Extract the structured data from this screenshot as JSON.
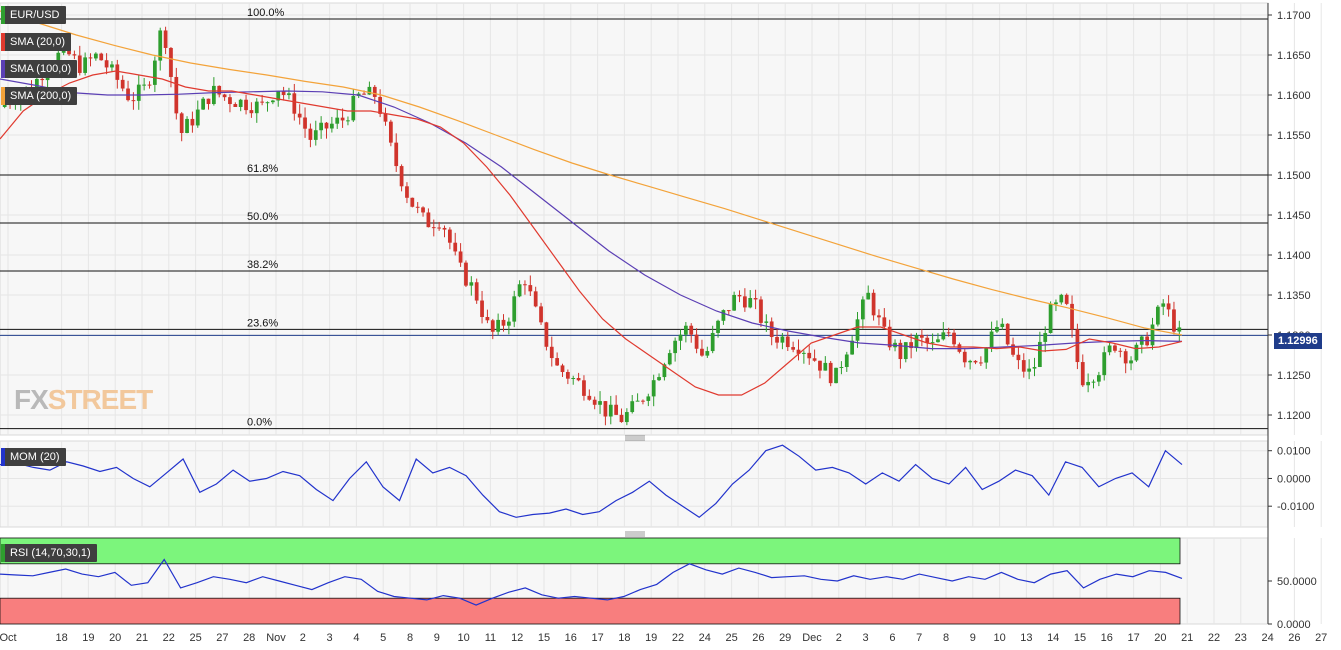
{
  "legend": {
    "pair": "EUR/USD",
    "sma20": "SMA (20,0)",
    "sma100": "SMA (100,0)",
    "sma200": "SMA (200,0)",
    "mom": "MOM (20)",
    "rsi": "RSI (14,70,30,1)"
  },
  "logo": {
    "part1": "FX",
    "part2": "STREET"
  },
  "current_price": "1.12996",
  "colors": {
    "bull": "#2e9e2e",
    "bear": "#d0342c",
    "sma20": "#e03a2f",
    "sma100": "#5b3fb4",
    "sma200": "#f3a33a",
    "mom": "#2233cc",
    "rsi": "#2233cc",
    "rsi_overbought_band": "#7cf57c",
    "rsi_oversold_band": "#f87e7e",
    "price_tag": "#1f3c8a"
  },
  "chart_data": {
    "type": "candlestick",
    "main_axis": {
      "ylim": [
        1.1175,
        1.1715
      ],
      "ticks": [
        "1.1700",
        "1.1650",
        "1.1600",
        "1.1550",
        "1.1500",
        "1.1450",
        "1.1400",
        "1.1350",
        "1.1300",
        "1.1250",
        "1.1200"
      ]
    },
    "fibonacci": [
      {
        "label": "100.0%",
        "value": 1.1695
      },
      {
        "label": "61.8%",
        "value": 1.15
      },
      {
        "label": "50.0%",
        "value": 1.144
      },
      {
        "label": "38.2%",
        "value": 1.138
      },
      {
        "label": "23.6%",
        "value": 1.1307
      },
      {
        "label": "0.0%",
        "value": 1.1183
      }
    ],
    "current_price": 1.12996,
    "x_axis": {
      "labels": [
        "Oct",
        "18",
        "19",
        "20",
        "21",
        "22",
        "25",
        "27",
        "28",
        "Nov",
        "2",
        "3",
        "4",
        "5",
        "8",
        "9",
        "10",
        "11",
        "12",
        "15",
        "16",
        "17",
        "18",
        "19",
        "22",
        "24",
        "25",
        "26",
        "29",
        "Dec",
        "2",
        "3",
        "6",
        "7",
        "8",
        "9",
        "10",
        "13",
        "14",
        "15",
        "16",
        "17",
        "20",
        "21",
        "22",
        "23",
        "24",
        "26",
        "27"
      ],
      "label_index": [
        0,
        2,
        3,
        4,
        5,
        6,
        7,
        8,
        9,
        10,
        11,
        12,
        13,
        14,
        15,
        16,
        17,
        18,
        19,
        20,
        21,
        22,
        23,
        24,
        25,
        26,
        27,
        28,
        29,
        30,
        31,
        32,
        33,
        34,
        35,
        36,
        37,
        38,
        39,
        40,
        41,
        42,
        43,
        44,
        45,
        46,
        47,
        48,
        49
      ]
    },
    "price_path": [
      1.1585,
      1.16,
      1.161,
      1.164,
      1.1655,
      1.1635,
      1.165,
      1.1625,
      1.1595,
      1.161,
      1.169,
      1.155,
      1.1575,
      1.1605,
      1.1595,
      1.159,
      1.1585,
      1.161,
      1.1585,
      1.1545,
      1.156,
      1.157,
      1.16,
      1.16,
      1.1525,
      1.147,
      1.144,
      1.1445,
      1.1385,
      1.1355,
      1.13,
      1.132,
      1.1375,
      1.131,
      1.126,
      1.1245,
      1.123,
      1.1205,
      1.1195,
      1.1215,
      1.1245,
      1.129,
      1.131,
      1.127,
      1.132,
      1.135,
      1.134,
      1.13,
      1.1295,
      1.1285,
      1.1265,
      1.1245,
      1.13,
      1.135,
      1.13,
      1.1275,
      1.1295,
      1.1285,
      1.1305,
      1.127,
      1.1275,
      1.1315,
      1.1265,
      1.125,
      1.1325,
      1.1345,
      1.1245,
      1.1255,
      1.129,
      1.127,
      1.1295,
      1.134,
      1.13
    ],
    "sma20": [
      1.1545,
      1.158,
      1.16,
      1.1615,
      1.1625,
      1.163,
      1.1625,
      1.162,
      1.161,
      1.1605,
      1.1605,
      1.16,
      1.1595,
      1.159,
      1.1585,
      1.158,
      1.158,
      1.1575,
      1.157,
      1.156,
      1.154,
      1.151,
      1.1475,
      1.1435,
      1.1395,
      1.1355,
      1.132,
      1.1295,
      1.1275,
      1.1255,
      1.1235,
      1.1225,
      1.1225,
      1.124,
      1.1265,
      1.129,
      1.13,
      1.131,
      1.131,
      1.13,
      1.129,
      1.1285,
      1.1285,
      1.1283,
      1.1285,
      1.128,
      1.1282,
      1.1295,
      1.129,
      1.1283,
      1.1285,
      1.1292
    ],
    "sma100": [
      1.162,
      1.1612,
      1.1603,
      1.16,
      1.16,
      1.1601,
      1.1603,
      1.1604,
      1.1605,
      1.1604,
      1.16,
      1.1585,
      1.1565,
      1.154,
      1.151,
      1.1475,
      1.144,
      1.1405,
      1.1375,
      1.135,
      1.133,
      1.1315,
      1.1305,
      1.1297,
      1.129,
      1.1287,
      1.1283,
      1.1283,
      1.1285,
      1.1287,
      1.129,
      1.1292,
      1.1293,
      1.1292
    ],
    "sma200": [
      1.1705,
      1.169,
      1.1675,
      1.1662,
      1.165,
      1.164,
      1.1632,
      1.1625,
      1.1617,
      1.161,
      1.16,
      1.1585,
      1.1568,
      1.155,
      1.1532,
      1.1515,
      1.15,
      1.1486,
      1.1472,
      1.1458,
      1.1443,
      1.1428,
      1.1413,
      1.1398,
      1.1384,
      1.137,
      1.1357,
      1.1345,
      1.1334,
      1.1322,
      1.1309,
      1.13
    ],
    "mom": {
      "ylim": [
        -0.0175,
        0.0135
      ],
      "ticks": [
        "0.0100",
        "0.0000",
        "-0.0100"
      ],
      "values": [
        0.005,
        0.0055,
        0.004,
        0.003,
        0.006,
        0.0045,
        0.0025,
        0.004,
        0.0,
        -0.003,
        0.002,
        0.007,
        -0.005,
        -0.002,
        0.003,
        -0.001,
        0.0,
        0.0025,
        0.001,
        -0.004,
        -0.008,
        0.0,
        0.006,
        -0.003,
        -0.008,
        0.007,
        0.002,
        0.004,
        0.001,
        -0.006,
        -0.012,
        -0.014,
        -0.013,
        -0.0125,
        -0.011,
        -0.013,
        -0.012,
        -0.008,
        -0.005,
        -0.001,
        -0.006,
        -0.01,
        -0.014,
        -0.009,
        -0.002,
        0.003,
        0.01,
        0.012,
        0.008,
        0.003,
        0.004,
        0.002,
        -0.002,
        0.002,
        -0.001,
        0.005,
        0.0,
        -0.002,
        0.004,
        -0.004,
        -0.001,
        0.003,
        0.001,
        -0.006,
        0.006,
        0.004,
        -0.003,
        0.0,
        0.002,
        -0.003,
        0.01,
        0.005
      ]
    },
    "rsi": {
      "ylim": [
        0,
        100
      ],
      "ticks": [
        "50.0000",
        "0.0000"
      ],
      "overbought": 70,
      "oversold": 30,
      "values": [
        58,
        57,
        56,
        60,
        64,
        58,
        55,
        60,
        45,
        48,
        75,
        42,
        48,
        55,
        52,
        48,
        55,
        50,
        45,
        40,
        48,
        55,
        52,
        38,
        32,
        30,
        28,
        33,
        30,
        22,
        30,
        37,
        42,
        34,
        30,
        32,
        30,
        28,
        32,
        40,
        46,
        60,
        70,
        63,
        58,
        65,
        60,
        54,
        55,
        56,
        52,
        50,
        56,
        52,
        55,
        52,
        58,
        54,
        50,
        55,
        52,
        60,
        52,
        48,
        58,
        62,
        42,
        52,
        58,
        55,
        62,
        60,
        53
      ]
    }
  }
}
